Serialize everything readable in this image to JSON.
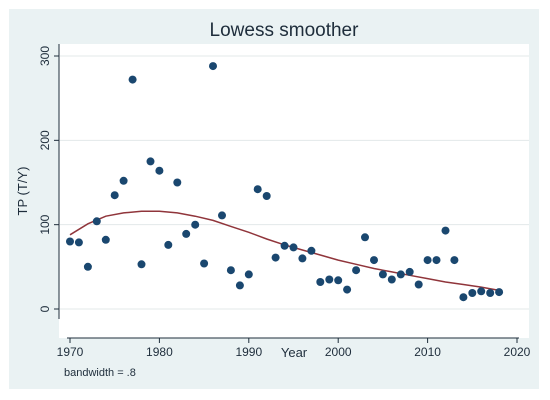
{
  "chart_data": {
    "type": "scatter",
    "title": "Lowess smoother",
    "xlabel": "Year",
    "ylabel": "TP (T/Y)",
    "xlim": [
      1969,
      2021
    ],
    "ylim": [
      0,
      300
    ],
    "x_ticks": [
      1970,
      1980,
      1990,
      2000,
      2010,
      2020
    ],
    "y_ticks": [
      0,
      100,
      200,
      300
    ],
    "grid": true,
    "note": "bandwidth = .8",
    "colors": {
      "points": "#1a476f",
      "smoother": "#90353b",
      "background": "#eaf2f3",
      "plot_area": "#ffffff"
    },
    "series": [
      {
        "type": "scatter",
        "points": [
          [
            1970,
            80
          ],
          [
            1971,
            79
          ],
          [
            1972,
            50
          ],
          [
            1973,
            104
          ],
          [
            1974,
            82
          ],
          [
            1975,
            135
          ],
          [
            1976,
            152
          ],
          [
            1977,
            272
          ],
          [
            1978,
            53
          ],
          [
            1979,
            175
          ],
          [
            1980,
            164
          ],
          [
            1981,
            76
          ],
          [
            1982,
            150
          ],
          [
            1983,
            89
          ],
          [
            1984,
            100
          ],
          [
            1985,
            54
          ],
          [
            1986,
            288
          ],
          [
            1987,
            111
          ],
          [
            1988,
            46
          ],
          [
            1989,
            28
          ],
          [
            1990,
            41
          ],
          [
            1991,
            142
          ],
          [
            1992,
            134
          ],
          [
            1993,
            61
          ],
          [
            1994,
            75
          ],
          [
            1995,
            73
          ],
          [
            1996,
            60
          ],
          [
            1997,
            69
          ],
          [
            1998,
            32
          ],
          [
            1999,
            35
          ],
          [
            2000,
            34
          ],
          [
            2001,
            23
          ],
          [
            2002,
            46
          ],
          [
            2003,
            85
          ],
          [
            2004,
            58
          ],
          [
            2005,
            41
          ],
          [
            2006,
            35
          ],
          [
            2007,
            41
          ],
          [
            2008,
            44
          ],
          [
            2009,
            29
          ],
          [
            2010,
            58
          ],
          [
            2011,
            58
          ],
          [
            2012,
            93
          ],
          [
            2013,
            58
          ],
          [
            2014,
            14
          ],
          [
            2015,
            19
          ],
          [
            2016,
            21
          ],
          [
            2017,
            19
          ],
          [
            2018,
            20
          ]
        ]
      },
      {
        "type": "line",
        "points": [
          [
            1970,
            88
          ],
          [
            1972,
            101
          ],
          [
            1974,
            110
          ],
          [
            1976,
            114
          ],
          [
            1978,
            116
          ],
          [
            1980,
            116
          ],
          [
            1982,
            114
          ],
          [
            1984,
            110
          ],
          [
            1986,
            105
          ],
          [
            1988,
            98
          ],
          [
            1990,
            91
          ],
          [
            1992,
            83
          ],
          [
            1994,
            76
          ],
          [
            1996,
            70
          ],
          [
            1998,
            64
          ],
          [
            2000,
            58
          ],
          [
            2002,
            53
          ],
          [
            2004,
            48
          ],
          [
            2006,
            44
          ],
          [
            2008,
            40
          ],
          [
            2010,
            36
          ],
          [
            2012,
            32
          ],
          [
            2014,
            29
          ],
          [
            2016,
            26
          ],
          [
            2018,
            22
          ]
        ]
      }
    ]
  }
}
